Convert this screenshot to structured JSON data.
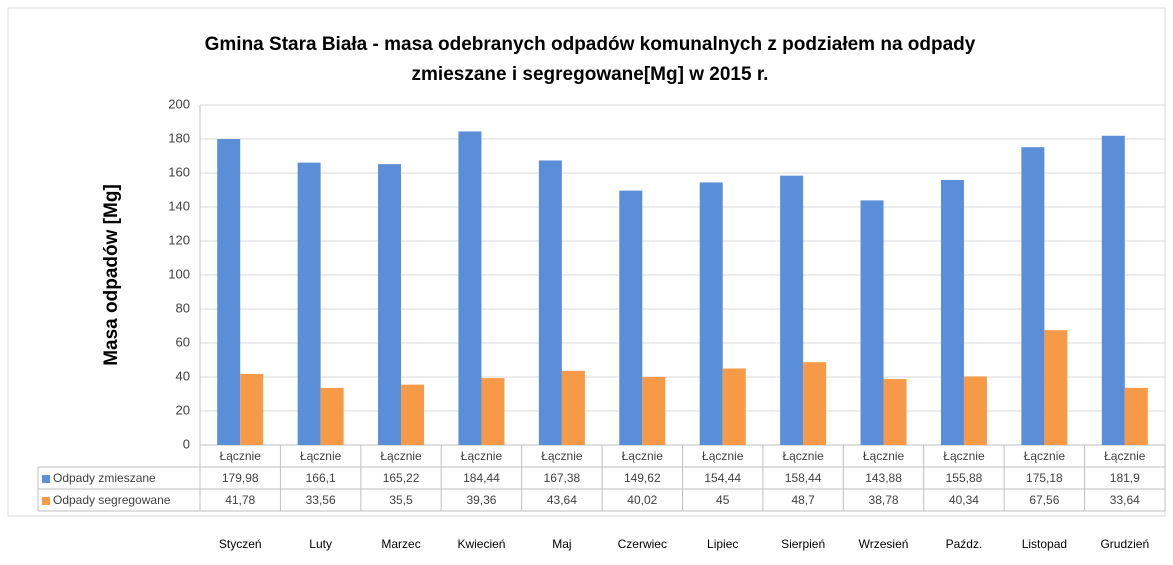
{
  "chart_data": {
    "type": "bar",
    "title": [
      "Gmina Stara Biała  - masa odebranych odpadów komunalnych z podziałem na odpady",
      "zmieszane i segregowane[Mg]  w 2015 r."
    ],
    "y_label": "Masa odpadów [Mg]",
    "categories": [
      "Łącznie",
      "Łącznie",
      "Łącznie",
      "Łącznie",
      "Łącznie",
      "Łącznie",
      "Łącznie",
      "Łącznie",
      "Łącznie",
      "Łącznie",
      "Łącznie",
      "Łącznie"
    ],
    "months": [
      "Styczeń",
      "Luty",
      "Marzec",
      "Kwiecień",
      "Maj",
      "Czerwiec",
      "Lipiec",
      "Sierpień",
      "Wrzesień",
      "Paźdz.",
      "Listopad",
      "Grudzień"
    ],
    "series": [
      {
        "name": "Odpady zmieszane",
        "color": "#5b8ed8",
        "values": [
          179.98,
          166.1,
          165.22,
          184.44,
          167.38,
          149.62,
          154.44,
          158.44,
          143.88,
          155.88,
          175.18,
          181.9
        ],
        "value_labels": [
          "179,98",
          "166,1",
          "165,22",
          "184,44",
          "167,38",
          "149,62",
          "154,44",
          "158,44",
          "143,88",
          "155,88",
          "175,18",
          "181,9"
        ]
      },
      {
        "name": "Odpady segregowane",
        "color": "#f79a48",
        "values": [
          41.78,
          33.56,
          35.5,
          39.36,
          43.64,
          40.02,
          45,
          48.7,
          38.78,
          40.34,
          67.56,
          33.64
        ],
        "value_labels": [
          "41,78",
          "33,56",
          "35,5",
          "39,36",
          "43,64",
          "40,02",
          "45",
          "48,7",
          "38,78",
          "40,34",
          "67,56",
          "33,64"
        ]
      }
    ],
    "ylim": [
      0,
      200
    ],
    "yticks": [
      0,
      20,
      40,
      60,
      80,
      100,
      120,
      140,
      160,
      180,
      200
    ],
    "grid": true
  }
}
